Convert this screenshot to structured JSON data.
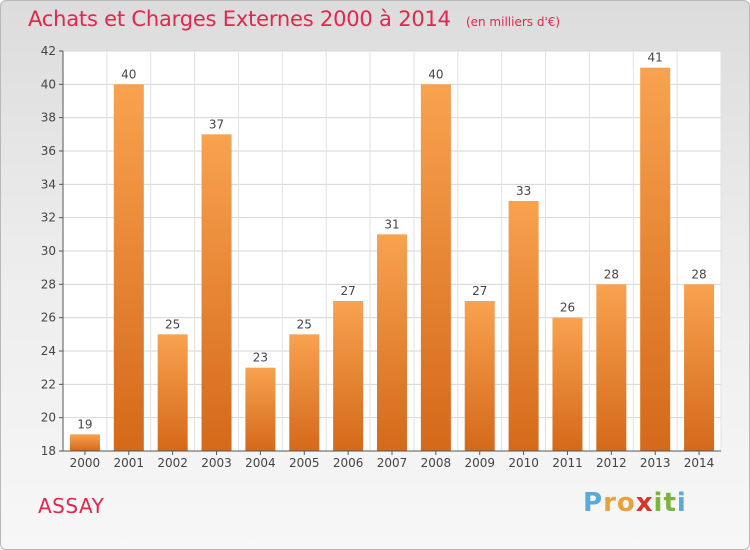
{
  "chart_data": {
    "type": "bar",
    "title": "Achats et Charges Externes 2000 à 2014",
    "unit": "(en milliers d'€)",
    "categories": [
      "2000",
      "2001",
      "2002",
      "2003",
      "2004",
      "2005",
      "2006",
      "2007",
      "2008",
      "2009",
      "2010",
      "2011",
      "2012",
      "2013",
      "2014"
    ],
    "values": [
      19,
      40,
      25,
      37,
      23,
      25,
      27,
      31,
      40,
      27,
      33,
      26,
      28,
      41,
      28
    ],
    "ylim": [
      18,
      42
    ],
    "yticks": [
      18,
      20,
      22,
      24,
      26,
      28,
      30,
      32,
      34,
      36,
      38,
      40,
      42
    ],
    "grid": true,
    "bar_color": "#f0922f"
  },
  "footer": {
    "place": "ASSAY",
    "logo": [
      "P",
      "r",
      "o",
      "x",
      "i",
      "t",
      "i"
    ]
  },
  "colors": {
    "accent": "#e4264c",
    "logo": [
      "#5aa9d6",
      "#e9a13b",
      "#e9a13b",
      "#d8342b",
      "#7bb33f",
      "#7bb33f",
      "#5aa9d6"
    ]
  }
}
